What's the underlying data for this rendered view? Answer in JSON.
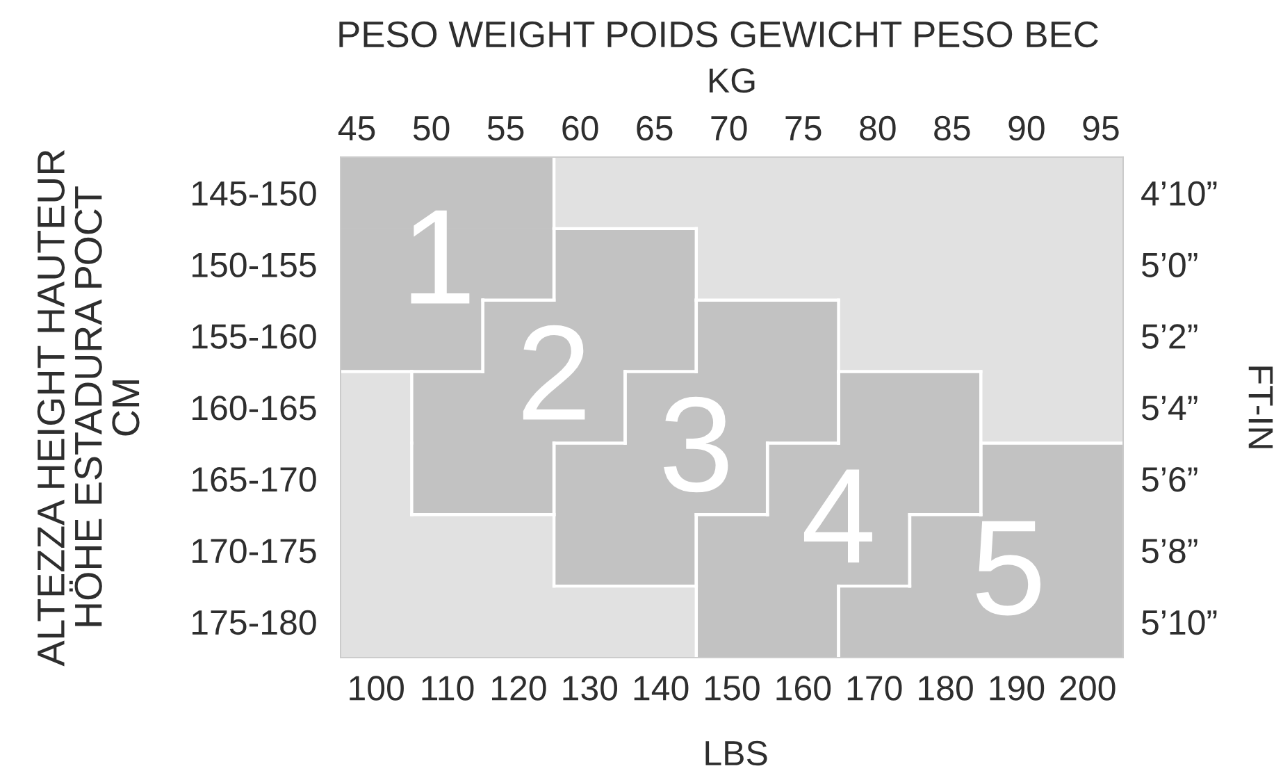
{
  "chart_data": {
    "type": "bar",
    "orientation": "horizontal",
    "title": "PESO WEIGHT POIDS GEWICHT PESO ВЕС",
    "x2label": "KG",
    "xlabel": "LBS",
    "ylabel": "ALTEZZA HEIGHT HAUTEUR\nHÖHE ESTADURA РОСТ\nCM",
    "y2label": "FT-IN",
    "categories": [
      "145-150",
      "150-155",
      "155-160",
      "160-165",
      "165-170",
      "170-175",
      "175-180"
    ],
    "y2_categories": [
      "4’10”",
      "5’0”",
      "5’2”",
      "5’4”",
      "5’6”",
      "5’8”",
      "5’10”"
    ],
    "xlim": [
      95,
      205
    ],
    "xticks": [
      100,
      110,
      120,
      130,
      140,
      150,
      160,
      170,
      180,
      190,
      200
    ],
    "x2lim": [
      43.9,
      96.5
    ],
    "x2ticks": [
      45,
      50,
      55,
      60,
      65,
      70,
      75,
      80,
      85,
      90,
      95
    ],
    "series": [
      {
        "name": "1",
        "color": "#c2c2c2",
        "base": [
          95,
          95,
          95,
          null,
          null,
          null,
          null
        ],
        "values": [
          30,
          30,
          20,
          null,
          null,
          null,
          null
        ]
      },
      {
        "name": "2",
        "color": "#c2c2c2",
        "base": [
          null,
          125,
          115,
          105,
          105,
          null,
          null
        ],
        "values": [
          null,
          20,
          30,
          30,
          20,
          null,
          null
        ]
      },
      {
        "name": "3",
        "color": "#c2c2c2",
        "base": [
          null,
          null,
          145,
          135,
          125,
          125,
          null
        ],
        "values": [
          null,
          null,
          20,
          30,
          30,
          20,
          null
        ]
      },
      {
        "name": "4",
        "color": "#c2c2c2",
        "base": [
          null,
          null,
          null,
          165,
          155,
          145,
          145
        ],
        "values": [
          null,
          null,
          null,
          20,
          30,
          30,
          20
        ]
      },
      {
        "name": "5",
        "color": "#c2c2c2",
        "base": [
          null,
          null,
          null,
          null,
          185,
          175,
          165
        ],
        "values": [
          null,
          null,
          null,
          null,
          20,
          30,
          40
        ]
      }
    ]
  }
}
